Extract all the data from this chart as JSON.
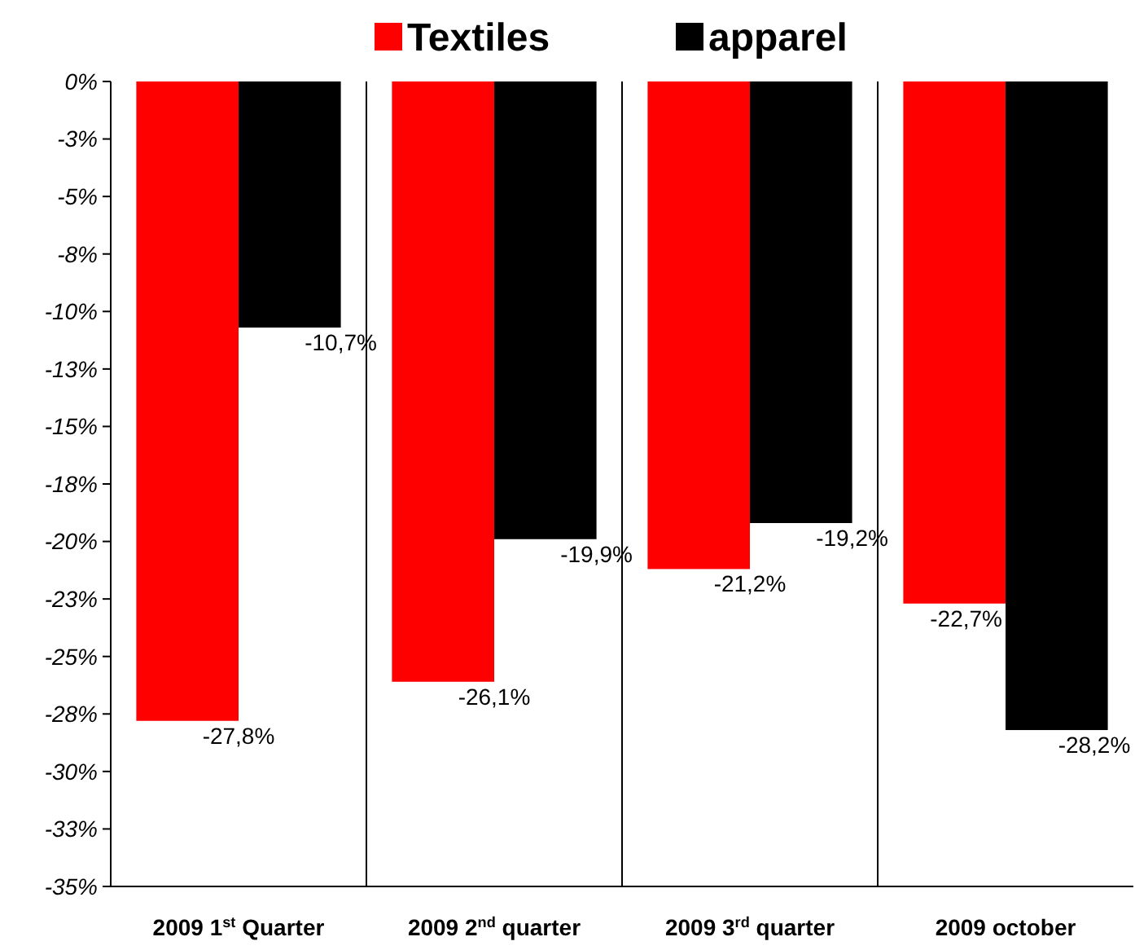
{
  "chart_data": {
    "type": "bar",
    "categories": [
      "2009 1$^{st}$ Quarter",
      "2009 2$^{nd}$ quarter",
      "2009 3$^{rd}$ quarter",
      "2009 october"
    ],
    "series": [
      {
        "name": "Textiles",
        "color": "#ff0000",
        "values": [
          -27.8,
          -26.1,
          -21.2,
          -22.7
        ],
        "value_labels": [
          "-27,8%",
          "-26,1%",
          "-21,2%",
          "-22,7%"
        ]
      },
      {
        "name": "apparel",
        "color": "#000000",
        "values": [
          -10.7,
          -19.9,
          -19.2,
          -28.2
        ],
        "value_labels": [
          "-10,7%",
          "-19,9%",
          "-19,2%",
          "-28,2%"
        ]
      }
    ],
    "ylim": [
      -35,
      0
    ],
    "yticks": [
      {
        "value": 0,
        "label": "0%"
      },
      {
        "value": -2.5,
        "label": "-3%"
      },
      {
        "value": -5,
        "label": "-5%"
      },
      {
        "value": -7.5,
        "label": "-8%"
      },
      {
        "value": -10,
        "label": "-10%"
      },
      {
        "value": -12.5,
        "label": "-13%"
      },
      {
        "value": -15,
        "label": "-15%"
      },
      {
        "value": -17.5,
        "label": "-18%"
      },
      {
        "value": -20,
        "label": "-20%"
      },
      {
        "value": -22.5,
        "label": "-23%"
      },
      {
        "value": -25,
        "label": "-25%"
      },
      {
        "value": -27.5,
        "label": "-28%"
      },
      {
        "value": -30,
        "label": "-30%"
      },
      {
        "value": -32.5,
        "label": "-33%"
      },
      {
        "value": -35,
        "label": "-35%"
      }
    ],
    "grid": "x",
    "legend": "top"
  }
}
